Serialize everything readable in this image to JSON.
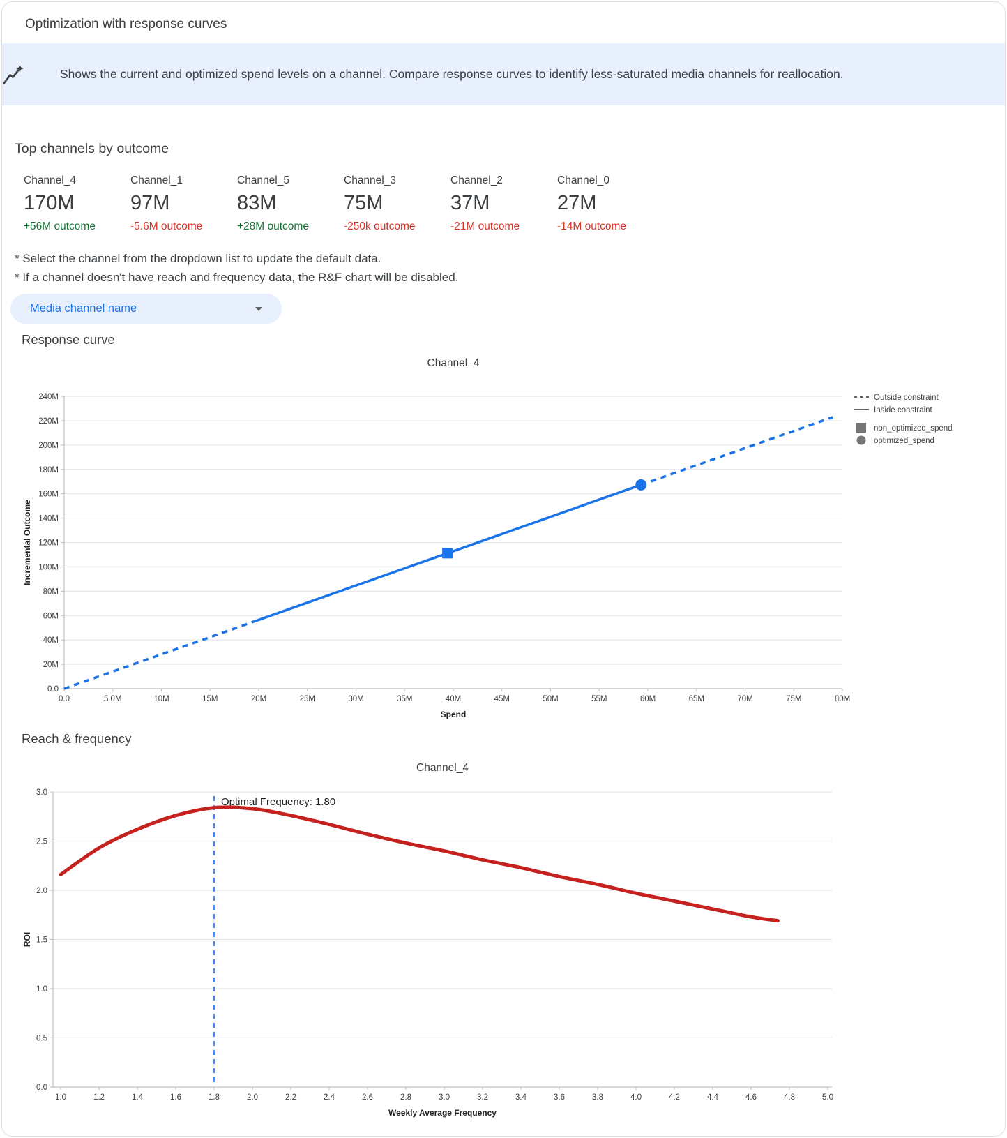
{
  "header": {
    "title": "Optimization with response curves"
  },
  "banner": {
    "icon": "insights-icon",
    "text": "Shows the current and optimized spend levels on a channel. Compare response curves to identify less-saturated media channels for reallocation."
  },
  "top_channels": {
    "title": "Top channels by outcome",
    "channels": [
      {
        "name": "Channel_4",
        "value": "170M",
        "delta": "+56M outcome",
        "direction": "positive"
      },
      {
        "name": "Channel_1",
        "value": "97M",
        "delta": "-5.6M outcome",
        "direction": "negative"
      },
      {
        "name": "Channel_5",
        "value": "83M",
        "delta": "+28M outcome",
        "direction": "positive"
      },
      {
        "name": "Channel_3",
        "value": "75M",
        "delta": "-250k outcome",
        "direction": "negative"
      },
      {
        "name": "Channel_2",
        "value": "37M",
        "delta": "-21M outcome",
        "direction": "negative"
      },
      {
        "name": "Channel_0",
        "value": "27M",
        "delta": "-14M outcome",
        "direction": "negative"
      }
    ]
  },
  "notes": [
    "* Select the channel from the dropdown list to update the default data.",
    "* If a channel doesn't have reach and frequency data, the R&F chart will be disabled."
  ],
  "dropdown": {
    "label": "Media channel name"
  },
  "sections": {
    "response_curve": "Response curve",
    "reach_frequency": "Reach & frequency"
  },
  "colors": {
    "positive": "#137333",
    "negative": "#d93025",
    "accent_blue": "#1a73e8",
    "rf_red": "#c5221f",
    "annotation_blue": "#4285f4",
    "banner_bg": "#e8f0fe",
    "legend_gray": "#5f6368",
    "grid": "#e3e5e8",
    "axis": "#bdc1c6",
    "tick_text": "#3c4043",
    "title_text": "#3c4043"
  },
  "chart_data": [
    {
      "id": "response-curve",
      "type": "line",
      "title": "Channel_4",
      "xlabel": "Spend",
      "ylabel": "Incremental Outcome",
      "xlim_millions": [
        0,
        80
      ],
      "ylim_millions": [
        0,
        240
      ],
      "x_tick_labels": [
        "0.0",
        "5.0M",
        "10M",
        "15M",
        "20M",
        "25M",
        "30M",
        "35M",
        "40M",
        "45M",
        "50M",
        "55M",
        "60M",
        "65M",
        "70M",
        "75M",
        "80M"
      ],
      "y_tick_labels": [
        "0.0",
        "20M",
        "40M",
        "60M",
        "80M",
        "100M",
        "120M",
        "140M",
        "160M",
        "180M",
        "200M",
        "220M",
        "240M"
      ],
      "grid": "horizontal",
      "constraint_range_millions": [
        19.7,
        59.3
      ],
      "series": [
        {
          "name": "response",
          "points_spend_outcome_millions": [
            [
              0,
              0
            ],
            [
              5,
              14.1
            ],
            [
              10,
              28.2
            ],
            [
              15,
              42.3
            ],
            [
              19.7,
              55.6
            ],
            [
              25,
              70.6
            ],
            [
              30,
              84.7
            ],
            [
              35,
              98.8
            ],
            [
              39.4,
              111.2
            ],
            [
              45,
              127.0
            ],
            [
              50,
              141.1
            ],
            [
              55,
              155.2
            ],
            [
              59.3,
              167.3
            ],
            [
              65,
              183.4
            ],
            [
              70,
              197.5
            ],
            [
              75,
              211.6
            ],
            [
              79,
              222.9
            ]
          ]
        }
      ],
      "markers": [
        {
          "name": "non_optimized_spend",
          "shape": "square",
          "spend_millions": 39.4,
          "outcome_millions": 111.2
        },
        {
          "name": "optimized_spend",
          "shape": "circle",
          "spend_millions": 59.3,
          "outcome_millions": 167.3
        }
      ],
      "legend": {
        "position": "right",
        "items": [
          {
            "label": "Outside constraint",
            "swatch": "dashed-line"
          },
          {
            "label": "Inside constraint",
            "swatch": "solid-line"
          },
          {
            "label": "non_optimized_spend",
            "swatch": "square"
          },
          {
            "label": "optimized_spend",
            "swatch": "circle"
          }
        ]
      }
    },
    {
      "id": "reach-frequency",
      "type": "line",
      "title": "Channel_4",
      "xlabel": "Weekly Average Frequency",
      "ylabel": "ROI",
      "xlim": [
        1.0,
        5.0
      ],
      "ylim": [
        0.0,
        3.0
      ],
      "x_tick_labels": [
        "1.0",
        "1.2",
        "1.4",
        "1.6",
        "1.8",
        "2.0",
        "2.2",
        "2.4",
        "2.6",
        "2.8",
        "3.0",
        "3.2",
        "3.4",
        "3.6",
        "3.8",
        "4.0",
        "4.2",
        "4.4",
        "4.6",
        "4.8",
        "5.0"
      ],
      "y_tick_labels": [
        "0.0",
        "0.5",
        "1.0",
        "1.5",
        "2.0",
        "2.5",
        "3.0"
      ],
      "grid": "horizontal",
      "series": [
        {
          "name": "roi",
          "points_freq_roi": [
            [
              1.0,
              2.16
            ],
            [
              1.2,
              2.43
            ],
            [
              1.4,
              2.62
            ],
            [
              1.6,
              2.76
            ],
            [
              1.8,
              2.84
            ],
            [
              2.0,
              2.83
            ],
            [
              2.2,
              2.76
            ],
            [
              2.4,
              2.67
            ],
            [
              2.6,
              2.57
            ],
            [
              2.8,
              2.48
            ],
            [
              3.0,
              2.4
            ],
            [
              3.2,
              2.31
            ],
            [
              3.4,
              2.23
            ],
            [
              3.6,
              2.14
            ],
            [
              3.8,
              2.06
            ],
            [
              4.0,
              1.97
            ],
            [
              4.2,
              1.89
            ],
            [
              4.4,
              1.81
            ],
            [
              4.6,
              1.73
            ],
            [
              4.74,
              1.69
            ]
          ]
        }
      ],
      "annotation": {
        "label": "Optimal Frequency: 1.80",
        "x": 1.8
      }
    }
  ]
}
